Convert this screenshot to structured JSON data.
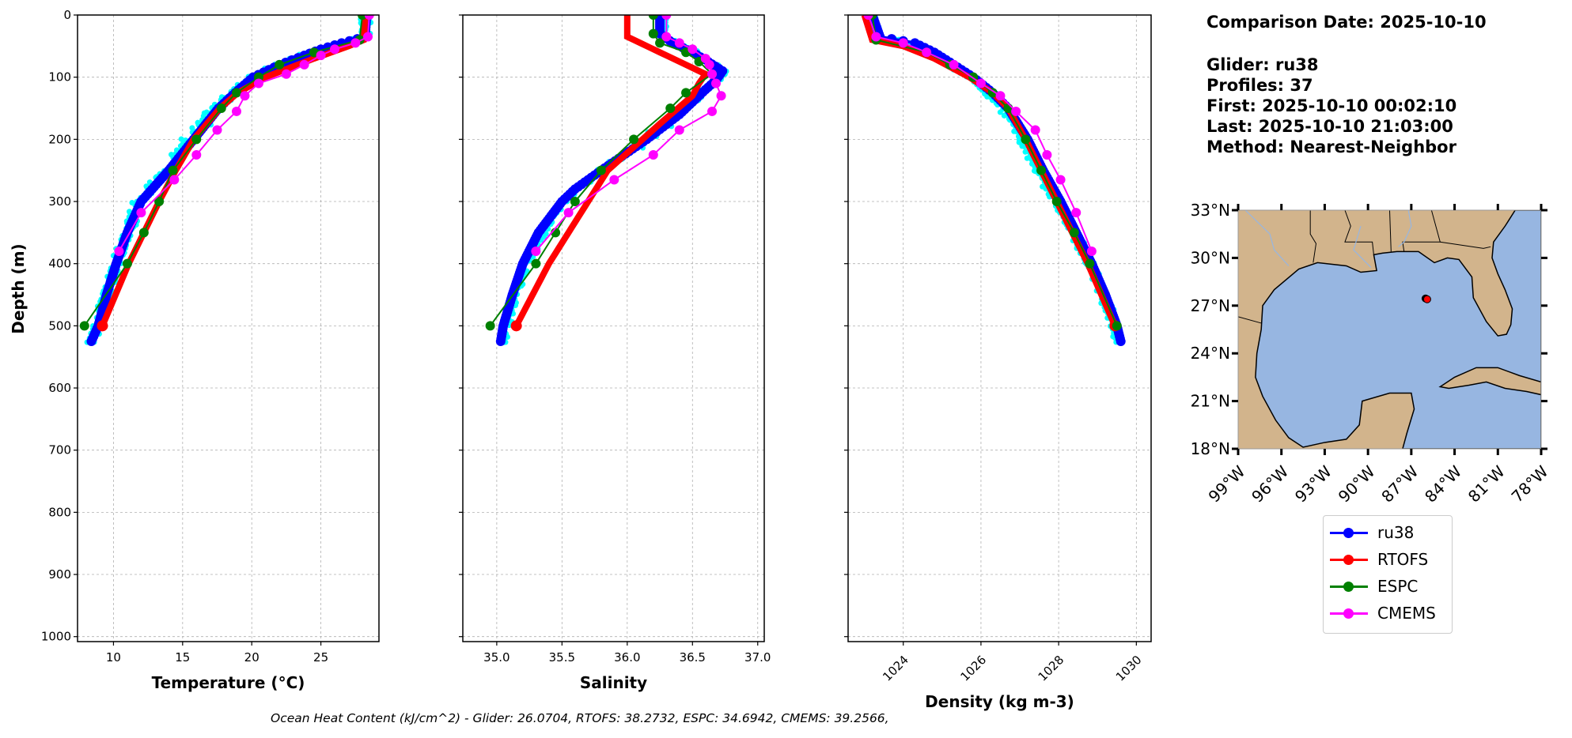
{
  "info": {
    "comparison_date": "Comparison Date: 2025-10-10",
    "glider": "Glider: ru38",
    "profiles": "Profiles: 37",
    "first": "First: 2025-10-10 00:02:10",
    "last": "Last: 2025-10-10 21:03:00",
    "method": "Method: Nearest-Neighbor"
  },
  "footer": "Ocean Heat Content (kJ/cm^2) - Glider: 26.0704,  RTOFS: 38.2732,  ESPC: 34.6942,  CMEMS: 39.2566,",
  "legend": [
    {
      "name": "ru38",
      "color": "#0000ff"
    },
    {
      "name": "RTOFS",
      "color": "#ff0000"
    },
    {
      "name": "ESPC",
      "color": "#008000"
    },
    {
      "name": "CMEMS",
      "color": "#ff00ff"
    }
  ],
  "colors": {
    "profiles": "#00ffff",
    "land": "#d2b48c",
    "ocean": "#97b6e1"
  },
  "chart_data": [
    {
      "type": "line",
      "title": "",
      "xlabel": "Temperature (°C)",
      "ylabel": "Depth (m)",
      "xlim": [
        7.4,
        29.2
      ],
      "ylim": [
        1008,
        0
      ],
      "xticks": [
        10,
        15,
        20,
        25
      ],
      "yticks": [
        0,
        100,
        200,
        300,
        400,
        500,
        600,
        700,
        800,
        900,
        1000
      ],
      "grid": true,
      "series": [
        {
          "name": "ru38",
          "depth": [
            0,
            35,
            45,
            55,
            65,
            80,
            100,
            125,
            150,
            200,
            250,
            280,
            300,
            330,
            350,
            400,
            450,
            500,
            525
          ],
          "values": [
            28.3,
            28.2,
            26.5,
            25.0,
            23.8,
            22.0,
            20.1,
            18.8,
            17.6,
            15.8,
            14.0,
            12.8,
            12.0,
            11.4,
            11.0,
            10.2,
            9.5,
            8.9,
            8.4
          ]
        },
        {
          "name": "RTOFS",
          "depth": [
            0,
            40,
            50,
            70,
            100,
            125,
            150,
            200,
            250,
            300,
            350,
            400,
            500
          ],
          "values": [
            28.2,
            28.1,
            27.0,
            24.5,
            21.0,
            19.0,
            17.7,
            15.8,
            14.5,
            13.3,
            12.2,
            11.1,
            9.2
          ]
        },
        {
          "name": "ESPC",
          "depth": [
            0,
            40,
            60,
            80,
            100,
            125,
            150,
            200,
            250,
            300,
            350,
            400,
            500
          ],
          "values": [
            28.0,
            27.8,
            24.5,
            22.0,
            20.5,
            18.9,
            17.8,
            16.0,
            14.3,
            13.3,
            12.2,
            11.0,
            7.9
          ]
        },
        {
          "name": "CMEMS",
          "depth": [
            0,
            35,
            45,
            55,
            65,
            80,
            95,
            110,
            130,
            155,
            185,
            225,
            265,
            318,
            380
          ],
          "values": [
            28.5,
            28.4,
            27.5,
            26.0,
            25.0,
            23.8,
            22.5,
            20.5,
            19.5,
            18.9,
            17.5,
            16.0,
            14.4,
            12.0,
            10.4
          ]
        }
      ]
    },
    {
      "type": "line",
      "xlabel": "Salinity",
      "xlim": [
        34.74,
        37.05
      ],
      "ylim": [
        1008,
        0
      ],
      "xticks": [
        35.0,
        35.5,
        36.0,
        36.5,
        37.0
      ],
      "yticks": [
        0,
        100,
        200,
        300,
        400,
        500,
        600,
        700,
        800,
        900,
        1000
      ],
      "grid": true,
      "series": [
        {
          "name": "ru38",
          "depth": [
            0,
            30,
            45,
            60,
            75,
            90,
            105,
            120,
            160,
            200,
            250,
            280,
            300,
            350,
            400,
            450,
            500,
            525
          ],
          "values": [
            36.25,
            36.25,
            36.35,
            36.5,
            36.62,
            36.73,
            36.68,
            36.6,
            36.4,
            36.15,
            35.8,
            35.6,
            35.5,
            35.32,
            35.2,
            35.12,
            35.05,
            35.03
          ]
        },
        {
          "name": "RTOFS",
          "depth": [
            0,
            35,
            45,
            60,
            80,
            95,
            110,
            130,
            175,
            250,
            300,
            350,
            400,
            500
          ],
          "values": [
            36.0,
            36.0,
            36.1,
            36.25,
            36.45,
            36.6,
            36.55,
            36.5,
            36.25,
            35.85,
            35.7,
            35.55,
            35.4,
            35.15
          ]
        },
        {
          "name": "ESPC",
          "depth": [
            0,
            30,
            45,
            60,
            75,
            95,
            125,
            150,
            200,
            250,
            300,
            350,
            400,
            500
          ],
          "values": [
            36.2,
            36.2,
            36.25,
            36.45,
            36.55,
            36.65,
            36.45,
            36.33,
            36.05,
            35.8,
            35.6,
            35.45,
            35.3,
            34.95
          ]
        },
        {
          "name": "CMEMS",
          "depth": [
            0,
            35,
            45,
            55,
            70,
            80,
            95,
            110,
            130,
            155,
            185,
            225,
            265,
            318,
            380
          ],
          "values": [
            36.3,
            36.3,
            36.4,
            36.5,
            36.6,
            36.63,
            36.65,
            36.68,
            36.72,
            36.65,
            36.4,
            36.2,
            35.9,
            35.55,
            35.3
          ]
        }
      ]
    },
    {
      "type": "line",
      "xlabel": "Density (kg m-3)",
      "xlim": [
        1022.58,
        1030.38
      ],
      "ylim": [
        1008,
        0
      ],
      "xticks": [
        1024,
        1026,
        1028,
        1030
      ],
      "yticks": [
        0,
        100,
        200,
        300,
        400,
        500,
        600,
        700,
        800,
        900,
        1000
      ],
      "grid": true,
      "series": [
        {
          "name": "ru38",
          "depth": [
            0,
            35,
            45,
            60,
            80,
            100,
            125,
            150,
            200,
            250,
            300,
            350,
            400,
            450,
            500,
            525
          ],
          "values": [
            1023.2,
            1023.4,
            1024.3,
            1024.8,
            1025.3,
            1025.8,
            1026.3,
            1026.7,
            1027.2,
            1027.6,
            1028.05,
            1028.45,
            1028.85,
            1029.2,
            1029.5,
            1029.6
          ]
        },
        {
          "name": "RTOFS",
          "depth": [
            0,
            40,
            50,
            70,
            100,
            125,
            150,
            200,
            250,
            300,
            350,
            400,
            500
          ],
          "values": [
            1023.0,
            1023.2,
            1024.0,
            1024.8,
            1025.7,
            1026.3,
            1026.7,
            1027.15,
            1027.55,
            1027.95,
            1028.35,
            1028.75,
            1029.45
          ]
        },
        {
          "name": "ESPC",
          "depth": [
            0,
            40,
            60,
            80,
            100,
            125,
            150,
            200,
            250,
            300,
            350,
            400,
            500
          ],
          "values": [
            1023.2,
            1023.3,
            1024.6,
            1025.2,
            1025.8,
            1026.3,
            1026.7,
            1027.15,
            1027.55,
            1027.95,
            1028.4,
            1028.8,
            1029.5
          ]
        },
        {
          "name": "CMEMS",
          "depth": [
            0,
            35,
            45,
            60,
            80,
            110,
            130,
            155,
            185,
            225,
            265,
            318,
            380
          ],
          "values": [
            1023.1,
            1023.3,
            1024.0,
            1024.6,
            1025.3,
            1026.0,
            1026.5,
            1026.9,
            1027.4,
            1027.7,
            1028.05,
            1028.45,
            1028.85
          ]
        }
      ]
    },
    {
      "type": "map",
      "lon_range": [
        -99,
        -78
      ],
      "lat_range": [
        18,
        33
      ],
      "lon_ticks": [
        "99°W",
        "96°W",
        "93°W",
        "90°W",
        "87°W",
        "84°W",
        "81°W",
        "78°W"
      ],
      "lat_ticks": [
        "18°N",
        "21°N",
        "24°N",
        "27°N",
        "30°N",
        "33°N"
      ],
      "glider_position": {
        "lon": -85.9,
        "lat": 27.4
      }
    }
  ]
}
